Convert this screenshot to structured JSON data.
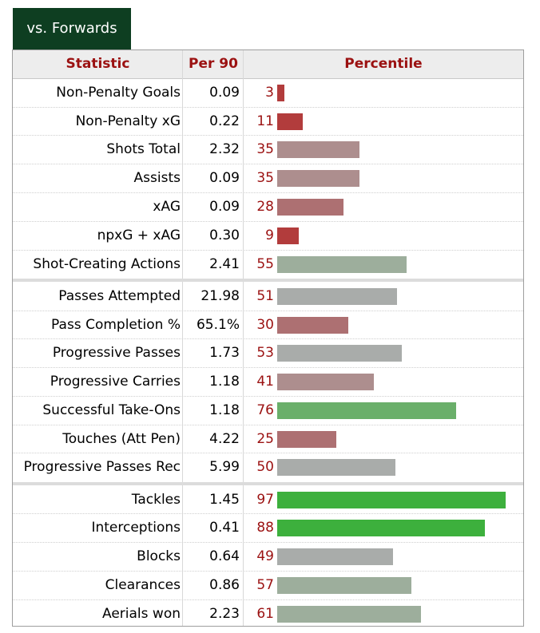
{
  "tab_label": "vs. Forwards",
  "headers": {
    "statistic": "Statistic",
    "per90": "Per 90",
    "percentile": "Percentile"
  },
  "colors": {
    "tab_bg": "#0e3e21",
    "header_text": "#9b1111",
    "very_low": "#b23c3c",
    "low": "#ad7072",
    "below_avg": "#ad8e8e",
    "average": "#a9acaa",
    "above_avg": "#9dae9c",
    "good": "#6aaf6a",
    "elite": "#3db03d"
  },
  "rows": [
    {
      "stat": "Non-Penalty Goals",
      "per90": "0.09",
      "pct": "3",
      "pct_value": 3,
      "color": "#b23c3c"
    },
    {
      "stat": "Non-Penalty xG",
      "per90": "0.22",
      "pct": "11",
      "pct_value": 11,
      "color": "#b23c3c"
    },
    {
      "stat": "Shots Total",
      "per90": "2.32",
      "pct": "35",
      "pct_value": 35,
      "color": "#ad8e8e"
    },
    {
      "stat": "Assists",
      "per90": "0.09",
      "pct": "35",
      "pct_value": 35,
      "color": "#ad8e8e"
    },
    {
      "stat": "xAG",
      "per90": "0.09",
      "pct": "28",
      "pct_value": 28,
      "color": "#ad7072"
    },
    {
      "stat": "npxG + xAG",
      "per90": "0.30",
      "pct": "9",
      "pct_value": 9,
      "color": "#b23c3c"
    },
    {
      "stat": "Shot-Creating Actions",
      "per90": "2.41",
      "pct": "55",
      "pct_value": 55,
      "color": "#9dae9c"
    },
    {
      "stat": "Passes Attempted",
      "per90": "21.98",
      "pct": "51",
      "pct_value": 51,
      "color": "#a9acaa"
    },
    {
      "stat": "Pass Completion %",
      "per90": "65.1%",
      "pct": "30",
      "pct_value": 30,
      "color": "#ad7072"
    },
    {
      "stat": "Progressive Passes",
      "per90": "1.73",
      "pct": "53",
      "pct_value": 53,
      "color": "#a9acaa"
    },
    {
      "stat": "Progressive Carries",
      "per90": "1.18",
      "pct": "41",
      "pct_value": 41,
      "color": "#ad8e8e"
    },
    {
      "stat": "Successful Take-Ons",
      "per90": "1.18",
      "pct": "76",
      "pct_value": 76,
      "color": "#6aaf6a"
    },
    {
      "stat": "Touches (Att Pen)",
      "per90": "4.22",
      "pct": "25",
      "pct_value": 25,
      "color": "#ad7072"
    },
    {
      "stat": "Progressive Passes Rec",
      "per90": "5.99",
      "pct": "50",
      "pct_value": 50,
      "color": "#a9acaa"
    },
    {
      "stat": "Tackles",
      "per90": "1.45",
      "pct": "97",
      "pct_value": 97,
      "color": "#3db03d"
    },
    {
      "stat": "Interceptions",
      "per90": "0.41",
      "pct": "88",
      "pct_value": 88,
      "color": "#3db03d"
    },
    {
      "stat": "Blocks",
      "per90": "0.64",
      "pct": "49",
      "pct_value": 49,
      "color": "#a9acaa"
    },
    {
      "stat": "Clearances",
      "per90": "0.86",
      "pct": "57",
      "pct_value": 57,
      "color": "#9dae9c"
    },
    {
      "stat": "Aerials won",
      "per90": "2.23",
      "pct": "61",
      "pct_value": 61,
      "color": "#9dae9c"
    }
  ]
}
